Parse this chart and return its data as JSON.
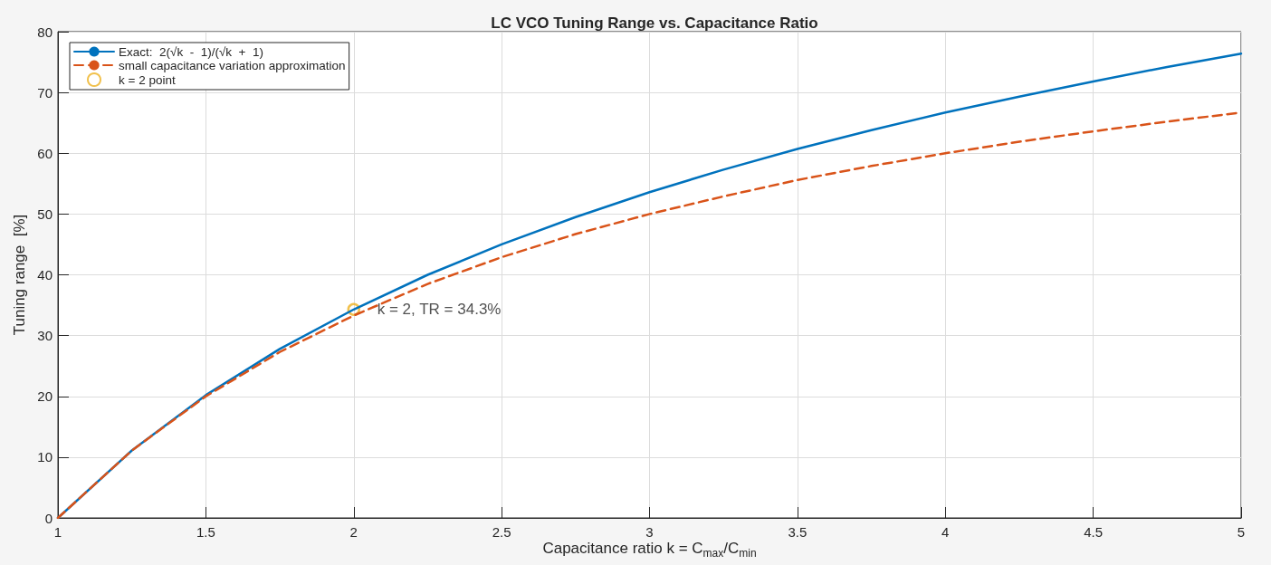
{
  "chart_data": {
    "type": "line",
    "title": "LC VCO Tuning Range vs. Capacitance Ratio",
    "xlabel": "Capacitance  ratio   k  =  C$_{max}$/C$_{min}$",
    "ylabel": "Tuning range  [%]",
    "xlim": [
      1,
      5
    ],
    "xticks": [
      1,
      1.5,
      2,
      2.5,
      3,
      3.5,
      4,
      4.5,
      5
    ],
    "ylim": [
      0,
      80
    ],
    "yticks": [
      0,
      10,
      20,
      30,
      40,
      50,
      60,
      70,
      80
    ],
    "grid": true,
    "legend": "top left",
    "annotations": [
      {
        "text": "k = 2, TR = 34.3%",
        "x": 2,
        "y": 34.3
      }
    ],
    "series": [
      {
        "name": "Exact:  2(√k  -  1)/(√k  +  1)",
        "color": "#0072bd",
        "line_style": "solid",
        "marker": "none",
        "x": [
          1,
          1.25,
          1.5,
          1.75,
          2,
          2.25,
          2.5,
          2.75,
          3,
          3.25,
          3.5,
          3.75,
          4,
          4.25,
          4.5,
          4.75,
          5
        ],
        "values": [
          0,
          11.1,
          20.2,
          27.8,
          34.3,
          40.0,
          45.0,
          49.5,
          53.6,
          57.3,
          60.7,
          63.8,
          66.7,
          69.3,
          71.8,
          74.2,
          76.4
        ]
      },
      {
        "name": "small capacitance variation approximation",
        "color": "#d95319",
        "line_style": "dashed",
        "marker": "none",
        "x": [
          1,
          1.25,
          1.5,
          1.75,
          2,
          2.25,
          2.5,
          2.75,
          3,
          3.25,
          3.5,
          3.75,
          4,
          4.25,
          4.5,
          4.75,
          5
        ],
        "values": [
          0,
          11.1,
          20.0,
          27.3,
          33.3,
          38.5,
          42.9,
          46.7,
          50.0,
          52.9,
          55.6,
          57.9,
          60.0,
          61.9,
          63.6,
          65.2,
          66.7
        ]
      },
      {
        "name": "k = 2 point",
        "type": "scatter",
        "color": "#edb120",
        "marker": "circle",
        "x": [
          2
        ],
        "values": [
          34.3
        ]
      }
    ]
  }
}
